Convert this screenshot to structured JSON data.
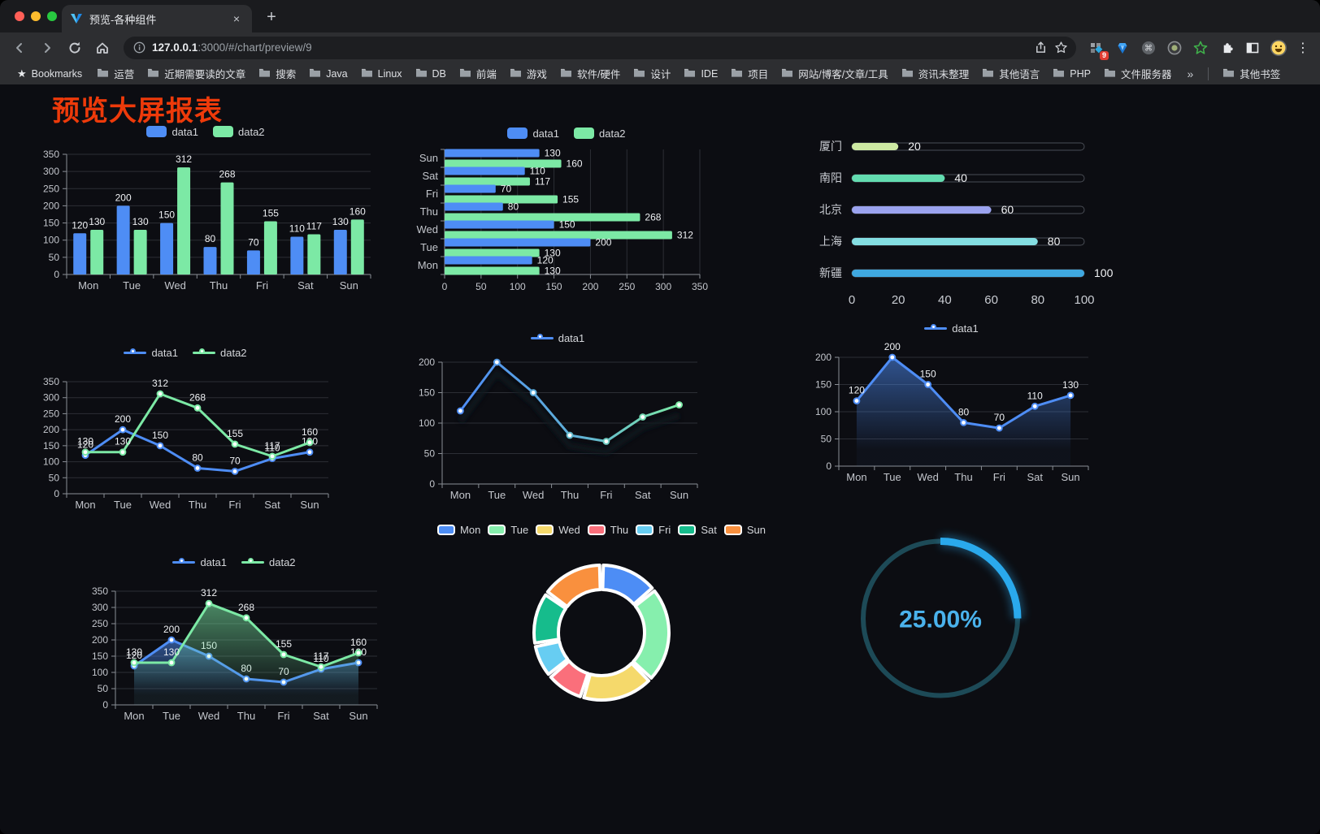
{
  "browser": {
    "tab_title": "预览-各种组件",
    "close_tab_icon": "×",
    "new_tab_icon": "+",
    "menu_icon": "⋮",
    "command_icon": "⌘",
    "bookmarks_star_icon": "★",
    "extension_badge": "9",
    "url": {
      "host": "127.0.0.1",
      "path": ":3000/#/chart/preview/9"
    },
    "bookmarks": {
      "root_label": "Bookmarks",
      "folders": [
        "运营",
        "近期需要读的文章",
        "搜索",
        "Java",
        "Linux",
        "DB",
        "前端",
        "游戏",
        "软件/硬件",
        "设计",
        "IDE",
        "项目",
        "网站/博客/文章/工具",
        "资讯未整理",
        "其他语言",
        "PHP",
        "文件服务器"
      ],
      "overflow_chevron": "»",
      "other_bookmarks": "其他书签"
    }
  },
  "page": {
    "title": "预览大屏报表",
    "title_color": "#ee3a0a",
    "background": "#0c0d12"
  },
  "chart_data": [
    {
      "id": "grouped-bar",
      "type": "bar",
      "legend": "bar",
      "labels": true,
      "categories": [
        "Mon",
        "Tue",
        "Wed",
        "Thu",
        "Fri",
        "Sat",
        "Sun"
      ],
      "series": [
        {
          "name": "data1",
          "color": "#4e8df5",
          "values": [
            120,
            200,
            150,
            80,
            70,
            110,
            130
          ]
        },
        {
          "name": "data2",
          "color": "#7ce9a5",
          "values": [
            130,
            130,
            312,
            268,
            155,
            117,
            160
          ]
        }
      ],
      "ylim": [
        0,
        350
      ],
      "yticks": [
        0,
        50,
        100,
        150,
        200,
        250,
        300,
        350
      ]
    },
    {
      "id": "grouped-hbar",
      "type": "hbar",
      "legend": "bar",
      "labels": true,
      "categories": [
        "Mon",
        "Tue",
        "Wed",
        "Thu",
        "Fri",
        "Sat",
        "Sun"
      ],
      "series": [
        {
          "name": "data1",
          "color": "#4e8df5",
          "values": [
            120,
            200,
            150,
            80,
            70,
            110,
            130
          ]
        },
        {
          "name": "data2",
          "color": "#7ce9a5",
          "values": [
            130,
            130,
            312,
            268,
            155,
            117,
            160
          ]
        }
      ],
      "xlim": [
        0,
        350
      ],
      "xticks": [
        0,
        50,
        100,
        150,
        200,
        250,
        300,
        350
      ]
    },
    {
      "id": "city-progress",
      "type": "progress",
      "max": 100,
      "xticks": [
        0,
        20,
        40,
        60,
        80,
        100
      ],
      "rows": [
        {
          "label": "厦门",
          "value": 20,
          "color": "#cde9a2"
        },
        {
          "label": "南阳",
          "value": 40,
          "color": "#63dcb0"
        },
        {
          "label": "北京",
          "value": 60,
          "color": "#9ba3ef"
        },
        {
          "label": "上海",
          "value": 80,
          "color": "#84dee2"
        },
        {
          "label": "新疆",
          "value": 100,
          "color": "#3fa8e0"
        }
      ]
    },
    {
      "id": "line-two",
      "type": "line",
      "legend": "line",
      "labels": true,
      "categories": [
        "Mon",
        "Tue",
        "Wed",
        "Thu",
        "Fri",
        "Sat",
        "Sun"
      ],
      "series": [
        {
          "name": "data1",
          "color": "#4e8df5",
          "values": [
            120,
            200,
            150,
            80,
            70,
            110,
            130
          ]
        },
        {
          "name": "data2",
          "color": "#7ce9a5",
          "values": [
            130,
            130,
            312,
            268,
            155,
            117,
            160
          ]
        }
      ],
      "ylim": [
        0,
        350
      ],
      "yticks": [
        0,
        50,
        100,
        150,
        200,
        250,
        300,
        350
      ]
    },
    {
      "id": "line-gradient",
      "type": "line",
      "legend": "line",
      "labels": false,
      "categories": [
        "Mon",
        "Tue",
        "Wed",
        "Thu",
        "Fri",
        "Sat",
        "Sun"
      ],
      "series": [
        {
          "name": "data1",
          "color": "#4e8df5",
          "color2": "#7ce9a5",
          "gradient": true,
          "shadow": true,
          "values": [
            120,
            200,
            150,
            80,
            70,
            110,
            130
          ]
        }
      ],
      "ylim": [
        0,
        200
      ],
      "yticks": [
        0,
        50,
        100,
        150,
        200
      ]
    },
    {
      "id": "area-single",
      "type": "line",
      "legend": "line",
      "labels": true,
      "categories": [
        "Mon",
        "Tue",
        "Wed",
        "Thu",
        "Fri",
        "Sat",
        "Sun"
      ],
      "series": [
        {
          "name": "data1",
          "color": "#4e8df5",
          "area": true,
          "values": [
            120,
            200,
            150,
            80,
            70,
            110,
            130
          ]
        }
      ],
      "ylim": [
        0,
        200
      ],
      "yticks": [
        0,
        50,
        100,
        150,
        200
      ]
    },
    {
      "id": "area-two",
      "type": "line",
      "legend": "line",
      "labels": true,
      "categories": [
        "Mon",
        "Tue",
        "Wed",
        "Thu",
        "Fri",
        "Sat",
        "Sun"
      ],
      "series": [
        {
          "name": "data1",
          "color": "#4e8df5",
          "area": true,
          "values": [
            120,
            200,
            150,
            80,
            70,
            110,
            130
          ]
        },
        {
          "name": "data2",
          "color": "#7ce9a5",
          "area": true,
          "values": [
            130,
            130,
            312,
            268,
            155,
            117,
            160
          ]
        }
      ],
      "ylim": [
        0,
        350
      ],
      "yticks": [
        0,
        50,
        100,
        150,
        200,
        250,
        300,
        350
      ]
    },
    {
      "id": "donut-week",
      "type": "pie",
      "labels": [
        "Mon",
        "Tue",
        "Wed",
        "Thu",
        "Fri",
        "Sat",
        "Sun"
      ],
      "values": [
        120,
        200,
        150,
        80,
        70,
        110,
        130
      ],
      "colors": [
        "#4d8df5",
        "#86efad",
        "#f5d96b",
        "#fa6f7b",
        "#67cdf2",
        "#16bc8c",
        "#f9903e"
      ]
    },
    {
      "id": "gauge-percent",
      "type": "gauge",
      "value": 25,
      "max": 100,
      "text": "25.00%",
      "color": "#2aa9ec",
      "track": "#1d4a57",
      "text_color": "#4ab2ec"
    }
  ]
}
